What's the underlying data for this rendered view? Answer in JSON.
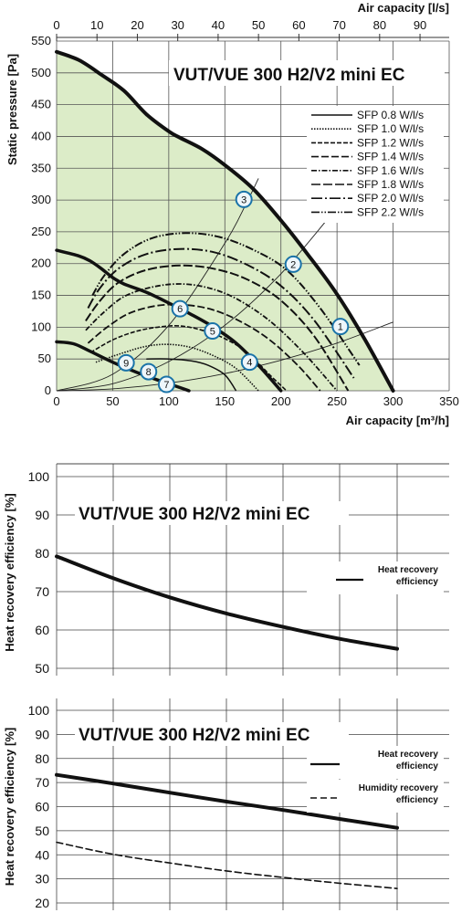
{
  "chart_data": [
    {
      "type": "line",
      "title": "VUT/VUE 300 H2/V2 mini EC",
      "xlabel": "Air capacity [m³/h]",
      "x2label": "Air capacity [l/s]",
      "ylabel": "Static pressure [Pa]",
      "xlim": [
        0,
        350
      ],
      "ylim": [
        0,
        550
      ],
      "x_ticks": [
        0,
        50,
        100,
        150,
        200,
        250,
        300,
        350
      ],
      "x2_ticks": [
        0,
        10,
        20,
        30,
        40,
        50,
        60,
        70,
        80,
        90
      ],
      "y_ticks": [
        0,
        50,
        100,
        150,
        200,
        250,
        300,
        350,
        400,
        450,
        500,
        550
      ],
      "grid": true,
      "colors": {
        "fill": "#dcecc8",
        "line": "#111111",
        "marker": "#1a73a8",
        "marker_fill": "#eef6fb"
      },
      "fan_curves": [
        {
          "x": [
            0,
            20,
            40,
            60,
            80,
            100,
            110,
            130,
            150,
            175,
            200,
            225,
            250,
            275,
            300
          ],
          "y": [
            533,
            520,
            497,
            472,
            435,
            408,
            398,
            380,
            355,
            318,
            268,
            212,
            152,
            80,
            0
          ]
        },
        {
          "x": [
            0,
            20,
            30,
            40,
            50,
            60,
            80,
            100,
            120,
            140,
            160,
            180,
            200
          ],
          "y": [
            221,
            212,
            204,
            192,
            178,
            168,
            155,
            138,
            120,
            100,
            75,
            40,
            0
          ]
        },
        {
          "x": [
            0,
            15,
            30,
            50,
            70,
            90,
            110,
            118
          ],
          "y": [
            77,
            74,
            62,
            45,
            30,
            17,
            5,
            0
          ]
        }
      ],
      "system_curves": [
        {
          "x": [
            0,
            50,
            100,
            150,
            200,
            250,
            300
          ],
          "y": [
            0,
            3,
            12,
            27,
            48,
            75,
            108
          ]
        },
        {
          "x": [
            0,
            50,
            100,
            150,
            200,
            250
          ],
          "y": [
            0,
            11,
            46,
            103,
            184,
            288
          ]
        },
        {
          "x": [
            0,
            50,
            100,
            150,
            170,
            180
          ],
          "y": [
            0,
            26,
            103,
            232,
            298,
            334
          ]
        }
      ],
      "sfp_legend": [
        "SFP 0.8 W/l/s",
        "SFP 1.0 W/l/s",
        "SFP 1.2 W/l/s",
        "SFP 1.4 W/l/s",
        "SFP 1.6 W/l/s",
        "SFP 1.8 W/l/s",
        "SFP 2.0 W/l/s",
        "SFP 2.2 W/l/s"
      ],
      "sfp_curves": [
        {
          "name": "SFP 0.8 W/l/s",
          "x": [
            80,
            100,
            120,
            135,
            150,
            160
          ],
          "y": [
            50,
            50,
            47,
            40,
            25,
            0
          ]
        },
        {
          "name": "SFP 1.0 W/l/s",
          "x": [
            35,
            60,
            80,
            100,
            120,
            140,
            160,
            180
          ],
          "y": [
            45,
            60,
            70,
            73,
            68,
            55,
            35,
            0
          ]
        },
        {
          "name": "SFP 1.2 W/l/s",
          "x": [
            30,
            50,
            70,
            90,
            110,
            130,
            150,
            170,
            190,
            205
          ],
          "y": [
            60,
            80,
            93,
            100,
            102,
            95,
            82,
            60,
            25,
            0
          ]
        },
        {
          "name": "SFP 1.4 W/l/s",
          "x": [
            28,
            45,
            65,
            90,
            115,
            140,
            165,
            190,
            215,
            235
          ],
          "y": [
            75,
            100,
            122,
            134,
            135,
            127,
            108,
            80,
            40,
            0
          ]
        },
        {
          "name": "SFP 1.6 W/l/s",
          "x": [
            26,
            40,
            60,
            85,
            110,
            135,
            160,
            190,
            220,
            250
          ],
          "y": [
            95,
            120,
            148,
            163,
            168,
            162,
            145,
            110,
            60,
            0
          ]
        },
        {
          "name": "SFP 1.8 W/l/s",
          "x": [
            26,
            38,
            55,
            80,
            110,
            140,
            170,
            200,
            230,
            260
          ],
          "y": [
            110,
            140,
            170,
            190,
            197,
            192,
            175,
            142,
            85,
            0
          ]
        },
        {
          "name": "SFP 2.0 W/l/s",
          "x": [
            28,
            38,
            55,
            80,
            110,
            140,
            170,
            200,
            230,
            265
          ],
          "y": [
            130,
            160,
            192,
            215,
            223,
            218,
            198,
            165,
            110,
            20
          ]
        },
        {
          "name": "SFP 2.2 W/l/s",
          "x": [
            32,
            42,
            60,
            85,
            115,
            145,
            175,
            205,
            235,
            270
          ],
          "y": [
            150,
            180,
            215,
            240,
            248,
            242,
            222,
            190,
            130,
            40
          ]
        }
      ],
      "markers": [
        {
          "label": "1",
          "x": 253,
          "y": 101
        },
        {
          "label": "2",
          "x": 211,
          "y": 199
        },
        {
          "label": "3",
          "x": 167,
          "y": 301
        },
        {
          "label": "4",
          "x": 172,
          "y": 45
        },
        {
          "label": "5",
          "x": 139,
          "y": 94
        },
        {
          "label": "6",
          "x": 110,
          "y": 129
        },
        {
          "label": "7",
          "x": 98,
          "y": 10
        },
        {
          "label": "8",
          "x": 82,
          "y": 30
        },
        {
          "label": "9",
          "x": 62,
          "y": 44
        }
      ]
    },
    {
      "type": "line",
      "title": "VUT/VUE 300 H2/V2 mini EC",
      "ylabel": "Heat recovery efficiency [%]",
      "ylim": [
        50,
        100
      ],
      "y_ticks": [
        50,
        60,
        70,
        80,
        90,
        100
      ],
      "grid": true,
      "legend_position": "right",
      "series": [
        {
          "name": "Heat recovery\nefficiency",
          "x": [
            0,
            1,
            2,
            3,
            4,
            5,
            6
          ],
          "values": [
            79.2,
            73.5,
            68.5,
            64.3,
            60.8,
            57.7,
            55.1
          ]
        }
      ]
    },
    {
      "type": "line",
      "title": "VUT/VUE 300 H2/V2 mini EC",
      "ylabel": "Heat recovery efficiency [%]",
      "ylim": [
        20,
        100
      ],
      "y_ticks": [
        20,
        30,
        40,
        50,
        60,
        70,
        80,
        90,
        100
      ],
      "grid": true,
      "legend_position": "right",
      "series": [
        {
          "name": "Heat recovery\nefficiency",
          "x": [
            0,
            1,
            2,
            3,
            4,
            5,
            6
          ],
          "values": [
            73.2,
            69.6,
            65.8,
            62.1,
            58.6,
            54.9,
            51.2
          ]
        },
        {
          "name": "Humidity recovery\nefficiency",
          "x": [
            0,
            1,
            2,
            3,
            4,
            5,
            6
          ],
          "values": [
            45.2,
            40.2,
            36.6,
            33.3,
            30.6,
            28.2,
            26.0
          ]
        }
      ]
    }
  ]
}
